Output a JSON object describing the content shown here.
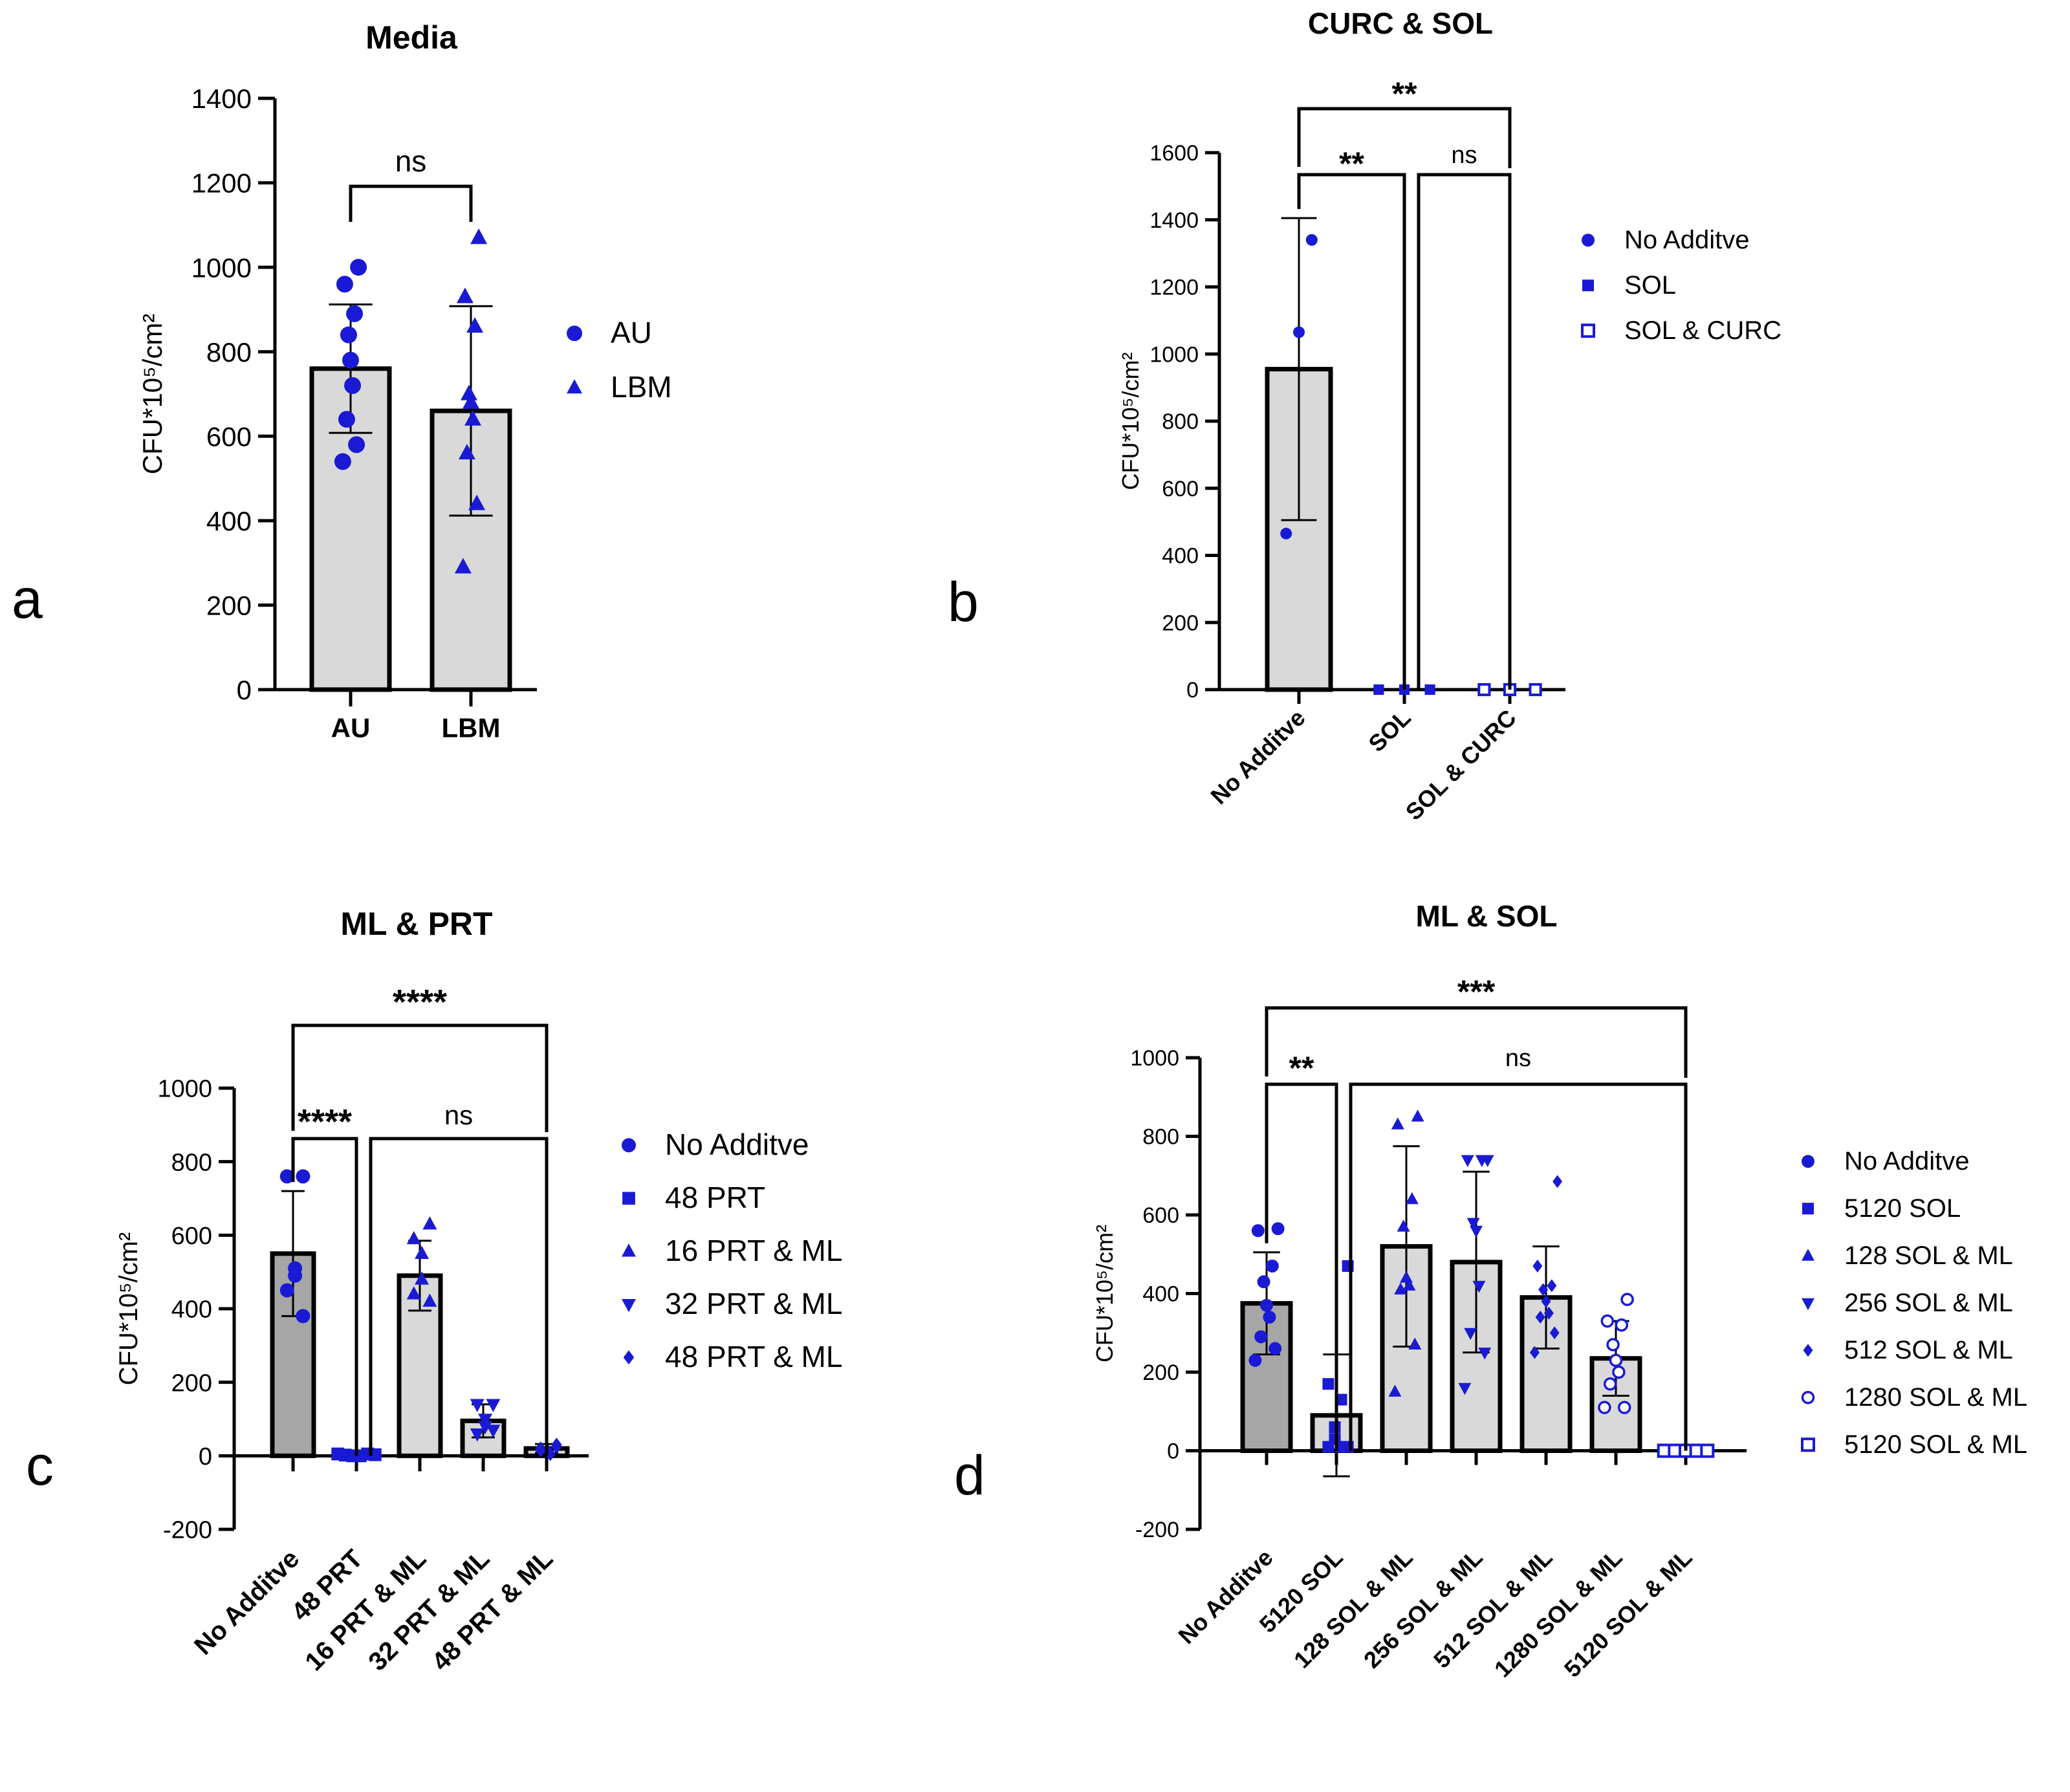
{
  "colors": {
    "marker": "#1a1ad4",
    "bar_light": "#d9d9d9",
    "bar_dark": "#a6a6a6",
    "ink": "#000000"
  },
  "chart_data": [
    {
      "panel_label": "a",
      "type": "bar",
      "title": "Media",
      "ylabel": "CFU*10⁵/cm²",
      "ylim": [
        0,
        1400
      ],
      "yticks": [
        "0",
        "200",
        "400",
        "600",
        "800",
        "1000",
        "1200",
        "1400"
      ],
      "categories": [
        "AU",
        "LBM"
      ],
      "means": [
        760,
        660
      ],
      "sd": [
        152,
        248
      ],
      "bar_style": [
        "light",
        "light"
      ],
      "points": [
        [
          1000,
          960,
          890,
          840,
          780,
          720,
          640,
          580,
          540
        ],
        [
          1070,
          930,
          860,
          700,
          680,
          640,
          560,
          440,
          290
        ]
      ],
      "markers": [
        "circle",
        "triangle-up"
      ],
      "legend": [
        "AU",
        "LBM"
      ],
      "significance": [
        {
          "from": 0,
          "to": [
            1
          ],
          "label": "ns"
        }
      ]
    },
    {
      "panel_label": "b",
      "type": "bar",
      "title": "CURC & SOL",
      "ylabel": "CFU*10⁵/cm²",
      "ylim": [
        0,
        1600
      ],
      "yticks": [
        "0",
        "200",
        "400",
        "600",
        "800",
        "1000",
        "1200",
        "1400",
        "1600"
      ],
      "categories": [
        "No Additve",
        "SOL",
        "SOL & CURC"
      ],
      "means": [
        955,
        0,
        0
      ],
      "sd": [
        450,
        0,
        0
      ],
      "bar_style": [
        "light",
        "light",
        "light"
      ],
      "points": [
        [
          1340,
          1065,
          465
        ],
        [
          0,
          0,
          0
        ],
        [
          0,
          0,
          0
        ]
      ],
      "markers": [
        "circle",
        "square",
        "square-open"
      ],
      "legend": [
        "No Additve",
        "SOL",
        "SOL & CURC"
      ],
      "significance": [
        {
          "from": 0,
          "to": [
            2
          ],
          "label": "**"
        },
        {
          "from": 0,
          "to": [
            1
          ],
          "label": "**"
        },
        {
          "from": 1,
          "to": [
            2
          ],
          "label": "ns"
        }
      ]
    },
    {
      "panel_label": "c",
      "type": "bar",
      "title": "ML & PRT",
      "ylabel": "CFU*10⁵/cm²",
      "ylim": [
        -200,
        1000
      ],
      "yticks": [
        "-200",
        "0",
        "200",
        "400",
        "600",
        "800",
        "1000"
      ],
      "categories": [
        "No Additve",
        "48 PRT",
        "16 PRT & ML",
        "32 PRT & ML",
        "48 PRT & ML"
      ],
      "means": [
        550,
        5,
        490,
        95,
        20
      ],
      "sd": [
        170,
        5,
        95,
        45,
        12
      ],
      "bar_style": [
        "dark",
        "light",
        "light",
        "light",
        "light"
      ],
      "points": [
        [
          760,
          760,
          510,
          490,
          450,
          380
        ],
        [
          5,
          2,
          0,
          0,
          5,
          3
        ],
        [
          630,
          590,
          550,
          480,
          440,
          420
        ],
        [
          140,
          140,
          100,
          80,
          60,
          70
        ],
        [
          30,
          20,
          10,
          5,
          15,
          25
        ]
      ],
      "markers": [
        "circle",
        "square",
        "triangle-up",
        "triangle-down",
        "diamond"
      ],
      "legend": [
        "No Additve",
        "48 PRT",
        "16 PRT & ML",
        "32 PRT & ML",
        "48 PRT & ML"
      ],
      "significance": [
        {
          "from": 0,
          "to": [
            4
          ],
          "label": "****"
        },
        {
          "from": 0,
          "to": [
            1
          ],
          "label": "****"
        },
        {
          "from": 1,
          "to": [
            4
          ],
          "label": "ns"
        }
      ]
    },
    {
      "panel_label": "d",
      "type": "bar",
      "title": "ML & SOL",
      "ylabel": "CFU*10⁵/cm²",
      "ylim": [
        -200,
        1000
      ],
      "yticks": [
        "-200",
        "0",
        "200",
        "400",
        "600",
        "800",
        "1000"
      ],
      "categories": [
        "No Additve",
        "5120 SOL",
        "128 SOL & ML",
        "256 SOL & ML",
        "512 SOL & ML",
        "1280 SOL & ML",
        "5120 SOL & ML"
      ],
      "means": [
        375,
        90,
        520,
        480,
        390,
        235,
        0
      ],
      "sd": [
        130,
        155,
        255,
        230,
        130,
        95,
        0
      ],
      "bar_style": [
        "dark",
        "light",
        "light",
        "light",
        "light",
        "light",
        "light"
      ],
      "points": [
        [
          565,
          560,
          470,
          430,
          370,
          340,
          290,
          260,
          230
        ],
        [
          470,
          170,
          130,
          60,
          30,
          10,
          10,
          10
        ],
        [
          850,
          830,
          640,
          570,
          440,
          420,
          410,
          270,
          150
        ],
        [
          740,
          740,
          740,
          580,
          560,
          420,
          300,
          250,
          160
        ],
        [
          685,
          470,
          420,
          410,
          380,
          350,
          340,
          300,
          250
        ],
        [
          385,
          330,
          320,
          270,
          230,
          200,
          170,
          110,
          110
        ],
        [
          0,
          0,
          0,
          0,
          0
        ]
      ],
      "markers": [
        "circle",
        "square",
        "triangle-up",
        "triangle-down",
        "diamond",
        "circle-open",
        "square-open"
      ],
      "legend": [
        "No Additve",
        "5120 SOL",
        "128 SOL & ML",
        "256 SOL & ML",
        "512 SOL & ML",
        "1280 SOL & ML",
        "5120 SOL & ML"
      ],
      "significance": [
        {
          "from": 0,
          "to": [
            6
          ],
          "label": "***"
        },
        {
          "from": 0,
          "to": [
            1
          ],
          "label": "**"
        },
        {
          "from": 1,
          "to": [
            6
          ],
          "label": "ns"
        }
      ]
    }
  ]
}
